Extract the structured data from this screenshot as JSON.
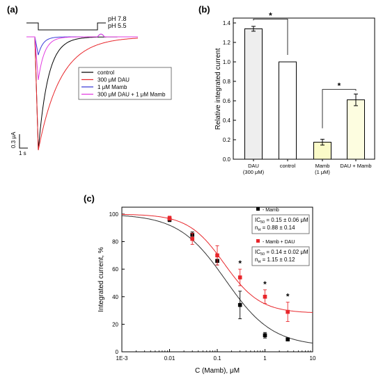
{
  "panels": {
    "a": "(a)",
    "b": "(b)",
    "c": "(c)"
  },
  "chart_data": [
    {
      "panel": "a",
      "type": "line",
      "stimulus": {
        "high": "pH 7.8",
        "low": "pH 5.5"
      },
      "legend": [
        "control",
        "300 μM DAU",
        "1 μM Mamb",
        "300 μM DAU + 1 μM Mamb"
      ],
      "series": [
        {
          "name": "control",
          "color": "#000000",
          "peak": 1.0
        },
        {
          "name": "300 μM DAU",
          "color": "#e8262b",
          "peak": 1.0
        },
        {
          "name": "1 μM Mamb",
          "color": "#3b3bd8",
          "peak": 0.16
        },
        {
          "name": "300 μM DAU + 1 μM Mamb",
          "color": "#e23be0",
          "peak": 0.38
        }
      ],
      "scalebar": {
        "y": "0.3 μA",
        "x": "1 s"
      }
    },
    {
      "panel": "b",
      "type": "bar",
      "ylabel": "Relative integrated current",
      "ylim": [
        0.0,
        1.45
      ],
      "yticks": [
        "0.0",
        "0.2",
        "0.4",
        "0.6",
        "0.8",
        "1.0",
        "1.2",
        "1.4"
      ],
      "categories": [
        {
          "line1": "DAU",
          "line2": "(300 μM)"
        },
        {
          "line1": "control",
          "line2": ""
        },
        {
          "line1": "Mamb",
          "line2": "(1 μM)"
        },
        {
          "line1": "DAU + Mamb",
          "line2": ""
        }
      ],
      "values": [
        1.34,
        1.0,
        0.175,
        0.61
      ],
      "errors": [
        0.025,
        0,
        0.03,
        0.06
      ],
      "colors": [
        "#eeeeee",
        "#ffffff",
        "#fbfbc8",
        "#fdfde0"
      ],
      "significance": [
        "*",
        "*"
      ]
    },
    {
      "panel": "c",
      "type": "scatter",
      "xlabel": "C (Mamb), μM",
      "ylabel": "Integrated current, %",
      "xscale": "log",
      "xlim": [
        0.001,
        10
      ],
      "ylim": [
        0,
        105
      ],
      "xticks": [
        "1E-3",
        "0.01",
        "0.1",
        "1",
        "10"
      ],
      "yticks": [
        "0",
        "20",
        "40",
        "60",
        "80",
        "100"
      ],
      "series": [
        {
          "name": "- Mamb",
          "color": "#000000",
          "x": [
            0.01,
            0.03,
            0.1,
            0.3,
            1,
            3
          ],
          "y": [
            96,
            85,
            66,
            34,
            12,
            9
          ],
          "err": [
            1.5,
            2,
            3,
            10,
            2,
            1
          ],
          "fit": {
            "ic50": 0.15,
            "nh": 0.88,
            "bottom": 4,
            "top": 100
          },
          "box": {
            "ic": "IC",
            "sub": "50",
            "value": " = 0.15 ± 0.06 μM",
            "n": "n",
            "nsub": "H",
            "nvalue": " = 0.88 ± 0.14"
          }
        },
        {
          "name": "- Mamb + DAU",
          "color": "#e8262b",
          "x": [
            0.01,
            0.03,
            0.1,
            0.3,
            1,
            3
          ],
          "y": [
            97,
            82,
            70,
            54,
            40,
            29
          ],
          "err": [
            1.5,
            4,
            7,
            6,
            5,
            7
          ],
          "fit": {
            "ic50": 0.14,
            "nh": 1.15,
            "bottom": 28,
            "top": 100
          },
          "box": {
            "ic": "IC",
            "sub": "50",
            "value": " = 0.14 ± 0.02 μM",
            "n": "n",
            "nsub": "H",
            "nvalue": " = 1.15 ± 0.12"
          }
        }
      ],
      "significance": {
        "mark": "*",
        "x": [
          0.3,
          1,
          3
        ]
      }
    }
  ]
}
